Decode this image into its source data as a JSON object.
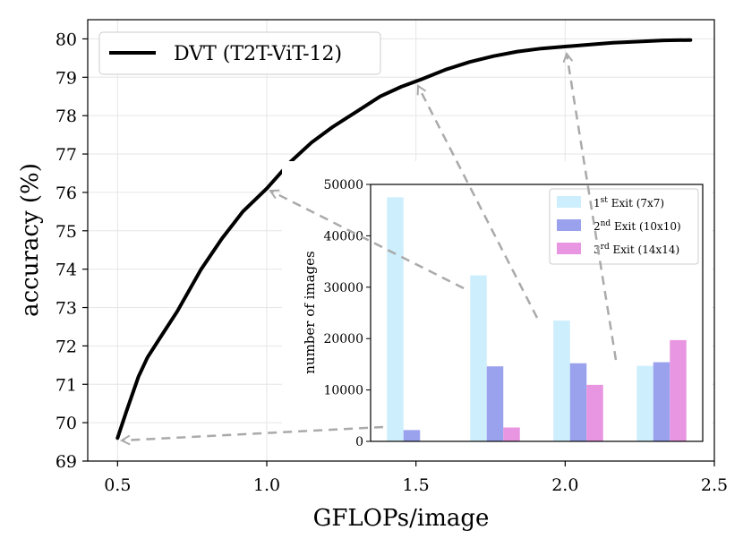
{
  "chart_data": [
    {
      "type": "line",
      "xlabel": "GFLOPs/image",
      "ylabel": "accuracy (%)",
      "xlim": [
        0.4,
        2.5
      ],
      "ylim": [
        69,
        80.5
      ],
      "xticks": [
        0.5,
        1.0,
        1.5,
        2.0,
        2.5
      ],
      "xtick_labels": [
        "0.5",
        "1.0",
        "1.5",
        "2.0",
        "2.5"
      ],
      "yticks": [
        69,
        70,
        71,
        72,
        73,
        74,
        75,
        76,
        77,
        78,
        79,
        80
      ],
      "ytick_labels": [
        "69",
        "70",
        "71",
        "72",
        "73",
        "74",
        "75",
        "76",
        "77",
        "78",
        "79",
        "80"
      ],
      "grid": true,
      "legend": "top-left",
      "series": [
        {
          "name": "DVT (T2T-ViT-12)",
          "color": "#000000",
          "x": [
            0.5,
            0.53,
            0.57,
            0.6,
            0.65,
            0.7,
            0.78,
            0.85,
            0.92,
            1.0,
            1.08,
            1.15,
            1.22,
            1.3,
            1.38,
            1.45,
            1.52,
            1.6,
            1.68,
            1.76,
            1.84,
            1.92,
            2.0,
            2.08,
            2.16,
            2.25,
            2.33,
            2.42
          ],
          "y": [
            69.6,
            70.3,
            71.2,
            71.7,
            72.3,
            72.9,
            74.0,
            74.8,
            75.5,
            76.1,
            76.8,
            77.3,
            77.7,
            78.1,
            78.5,
            78.75,
            78.95,
            79.2,
            79.4,
            79.55,
            79.67,
            79.75,
            79.8,
            79.85,
            79.9,
            79.93,
            79.96,
            79.97
          ]
        }
      ]
    },
    {
      "type": "bar",
      "ylabel": "number of images",
      "ylim": [
        0,
        50000
      ],
      "yticks": [
        0,
        10000,
        20000,
        30000,
        40000,
        50000
      ],
      "ytick_labels": [
        "0",
        "10000",
        "20000",
        "30000",
        "40000",
        "50000"
      ],
      "legend": "top-right",
      "groups": 4,
      "series": [
        {
          "name_sup": "st",
          "name_rest": " Exit (7x7)",
          "name_num": "1",
          "color": "#cdeefc",
          "values": [
            47500,
            32300,
            23500,
            14700
          ]
        },
        {
          "name_sup": "nd",
          "name_rest": " Exit (10x10)",
          "name_num": "2",
          "color": "#9aa2ee",
          "values": [
            2200,
            14600,
            15200,
            15400
          ]
        },
        {
          "name_sup": "rd",
          "name_rest": " Exit (14x14)",
          "name_num": "3",
          "color": "#e896e1",
          "values": [
            0,
            2700,
            11000,
            19700
          ]
        }
      ]
    }
  ]
}
